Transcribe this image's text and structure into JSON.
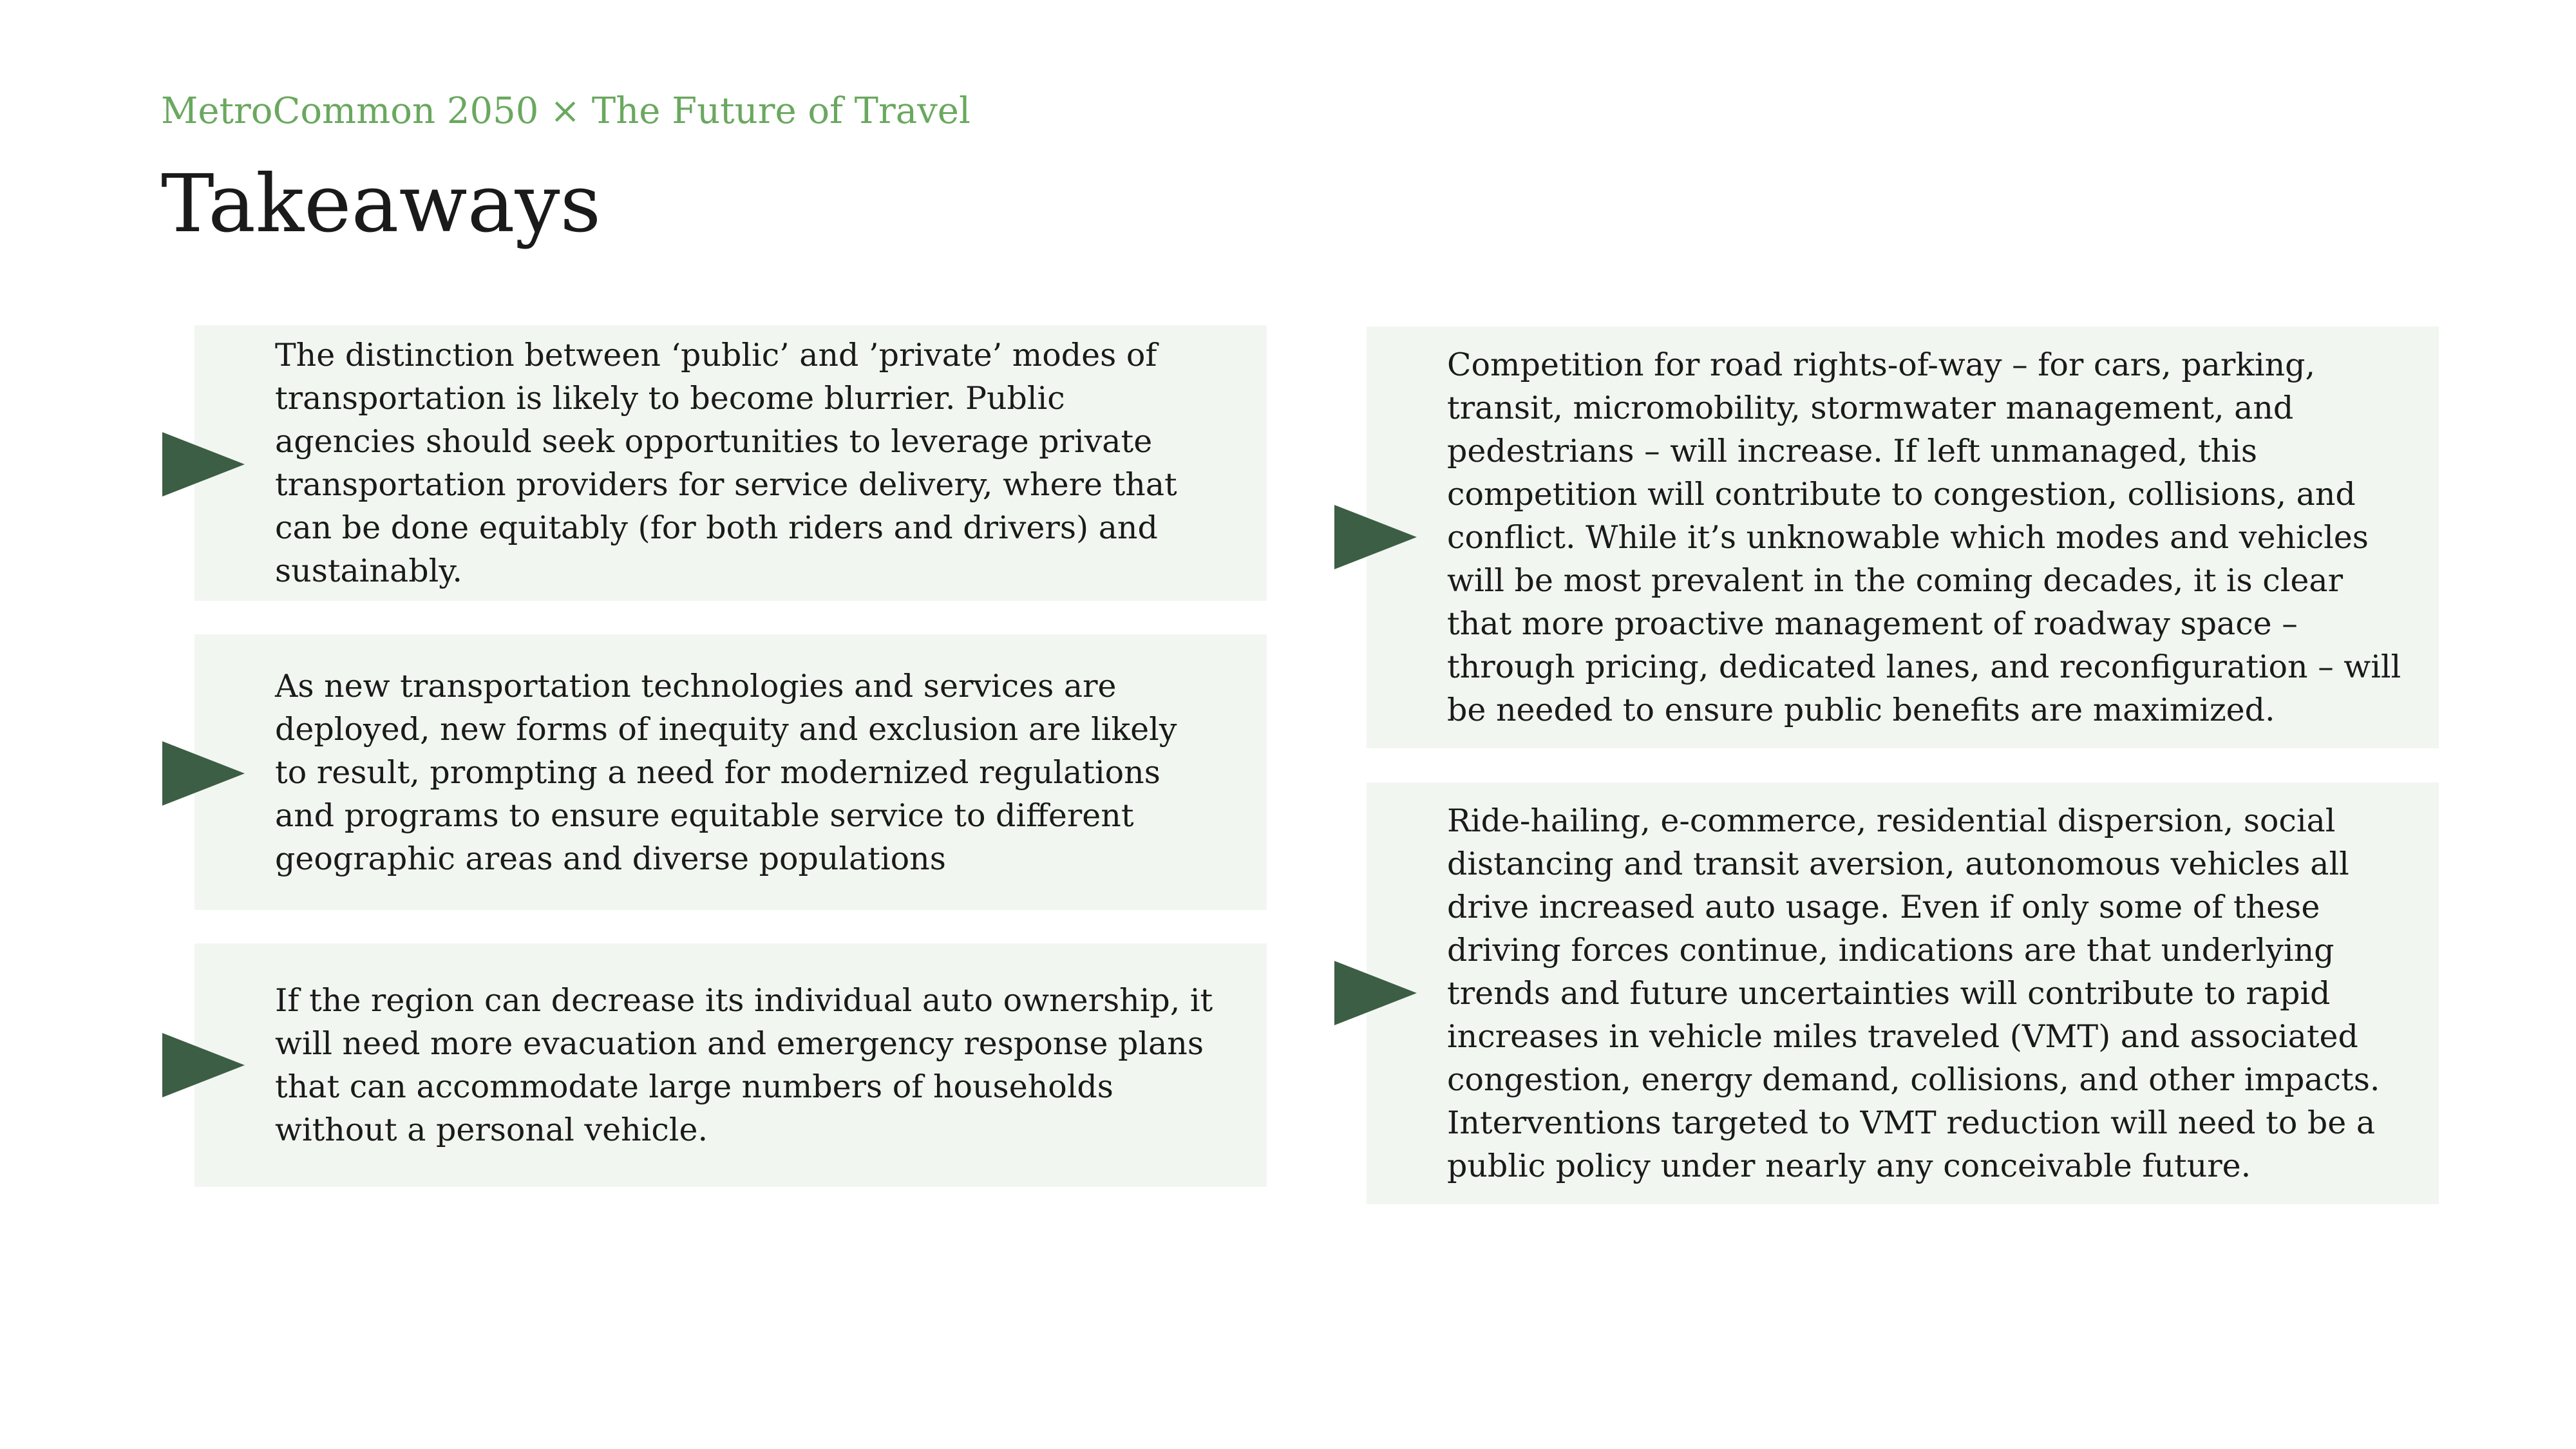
{
  "header": {
    "eyebrow": "MetroCommon 2050 × The Future of Travel",
    "title": "Takeaways"
  },
  "colors": {
    "eyebrow": "#6aa85f",
    "arrow": "#3c5e44",
    "card_background": "#f2f6f1",
    "text": "#1a1a1a"
  },
  "takeaways": [
    {
      "icon": "triangle-arrow-icon",
      "text": "The distinction between ‘public’ and ’private’ modes of transportation is likely to become blurrier. Public agencies should seek opportunities to leverage private transportation providers for service delivery, where that can be done equitably (for both riders and drivers) and sustainably."
    },
    {
      "icon": "triangle-arrow-icon",
      "text": "As new transportation technologies and services are deployed, new forms of inequity and exclusion are likely to result, prompting a need for modernized regulations and programs to ensure equitable service to different geographic areas and diverse populations"
    },
    {
      "icon": "triangle-arrow-icon",
      "text": "If the region can decrease its individual auto ownership, it will need more evacuation and emergency response plans that can accommodate large numbers of households without a personal vehicle."
    },
    {
      "icon": "triangle-arrow-icon",
      "text": "Competition for road rights-of-way – for cars, parking, transit, micromobility, stormwater management, and pedestrians – will increase. If left unmanaged, this competition will contribute to congestion, collisions, and conflict. While it’s unknowable which modes and vehicles will be most prevalent in the coming decades, it is clear that more proactive management of roadway space – through pricing, dedicated lanes, and reconfiguration – will be needed to ensure public benefits are maximized."
    },
    {
      "icon": "triangle-arrow-icon",
      "text": "Ride-hailing, e-commerce, residential dispersion, social distancing and transit aversion, autonomous vehicles all drive increased auto usage. Even if only some of these driving forces continue, indications are that underlying trends and future uncertainties will contribute to rapid increases in vehicle miles traveled (VMT) and associated congestion, energy demand, collisions, and other impacts. Interventions targeted to VMT reduction will need to be a public policy under nearly any conceivable future."
    }
  ]
}
